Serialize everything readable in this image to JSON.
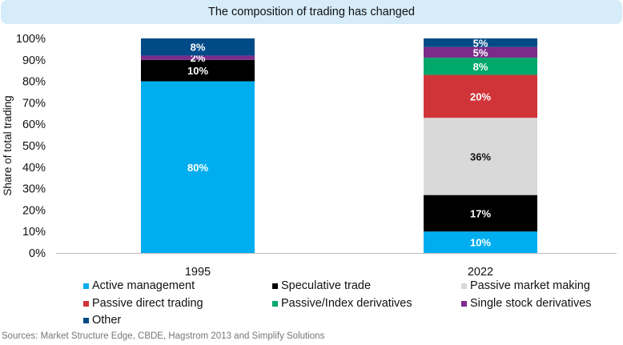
{
  "chart_data": {
    "type": "bar",
    "stacked": true,
    "title": "The composition of trading has changed",
    "ylabel": "Share of total trading",
    "xlabel": "",
    "ylim": [
      0,
      100
    ],
    "yticks": [
      "0%",
      "10%",
      "20%",
      "30%",
      "40%",
      "50%",
      "60%",
      "70%",
      "80%",
      "90%",
      "100%"
    ],
    "categories": [
      "1995",
      "2022"
    ],
    "series": [
      {
        "name": "Active management",
        "color": "#00aeef",
        "values": [
          80,
          10
        ],
        "labels": [
          "80%",
          "10%"
        ]
      },
      {
        "name": "Speculative trade",
        "color": "#000000",
        "values": [
          10,
          17
        ],
        "labels": [
          "10%",
          "17%"
        ]
      },
      {
        "name": "Passive market making",
        "color": "#d9d9d9",
        "values": [
          0,
          36
        ],
        "labels": [
          "",
          "36%"
        ]
      },
      {
        "name": "Passive direct trading",
        "color": "#d13438",
        "values": [
          0,
          20
        ],
        "labels": [
          "",
          "20%"
        ]
      },
      {
        "name": "Passive/Index derivatives",
        "color": "#00a86b",
        "values": [
          0,
          8
        ],
        "labels": [
          "",
          "8%"
        ]
      },
      {
        "name": "Single stock derivatives",
        "color": "#7b2c8a",
        "values": [
          2,
          5
        ],
        "labels": [
          "2%",
          "5%"
        ]
      },
      {
        "name": "Other",
        "color": "#004b87",
        "values": [
          8,
          5
        ],
        "labels": [
          "8%",
          "5%"
        ]
      }
    ],
    "legend_position": "bottom",
    "grid": false
  },
  "source": "Sources: Market Structure Edge, CBDE, Hagstrom 2013 and Simplify Solutions"
}
